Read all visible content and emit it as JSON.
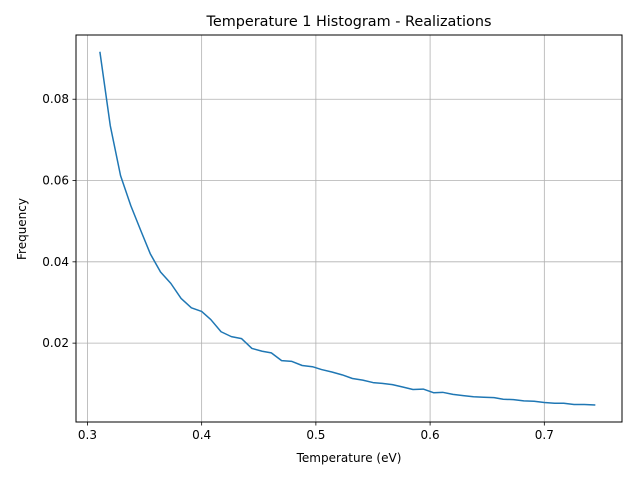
{
  "chart_data": {
    "type": "line",
    "title": "Temperature 1 Histogram - Realizations",
    "xlabel": "Temperature (eV)",
    "ylabel": "Frequency",
    "xlim": [
      0.29,
      0.768
    ],
    "ylim": [
      0.0006,
      0.0958
    ],
    "xticks": [
      0.3,
      0.4,
      0.5,
      0.6,
      0.7
    ],
    "xtick_labels": [
      "0.3",
      "0.4",
      "0.5",
      "0.6",
      "0.7"
    ],
    "yticks": [
      0.02,
      0.04,
      0.06,
      0.08
    ],
    "ytick_labels": [
      "0.02",
      "0.04",
      "0.06",
      "0.08"
    ],
    "grid": true,
    "line_color": "#1f77b4",
    "grid_color": "#b0b0b0",
    "series": [
      {
        "x": [
          0.311,
          0.32,
          0.329,
          0.338,
          0.347,
          0.355,
          0.364,
          0.373,
          0.382,
          0.391,
          0.4,
          0.408,
          0.417,
          0.426,
          0.435,
          0.444,
          0.453,
          0.461,
          0.47,
          0.479,
          0.488,
          0.497,
          0.505,
          0.514,
          0.523,
          0.532,
          0.541,
          0.55,
          0.558,
          0.567,
          0.576,
          0.585,
          0.594,
          0.603,
          0.611,
          0.62,
          0.629,
          0.638,
          0.647,
          0.656,
          0.664,
          0.673,
          0.682,
          0.691,
          0.7,
          0.709,
          0.717,
          0.726,
          0.735,
          0.744
        ],
        "values": [
          0.0915,
          0.0735,
          0.0612,
          0.0538,
          0.0475,
          0.042,
          0.0375,
          0.0347,
          0.031,
          0.0287,
          0.0278,
          0.0258,
          0.0228,
          0.0216,
          0.0211,
          0.0187,
          0.018,
          0.0176,
          0.0157,
          0.0155,
          0.0145,
          0.0142,
          0.0135,
          0.0129,
          0.0122,
          0.0113,
          0.0109,
          0.0103,
          0.0101,
          0.0098,
          0.0092,
          0.0086,
          0.0087,
          0.0078,
          0.0079,
          0.0074,
          0.0071,
          0.0068,
          0.0067,
          0.0066,
          0.0062,
          0.0061,
          0.0058,
          0.0057,
          0.0054,
          0.0052,
          0.0052,
          0.0049,
          0.0049,
          0.0048
        ]
      }
    ]
  }
}
